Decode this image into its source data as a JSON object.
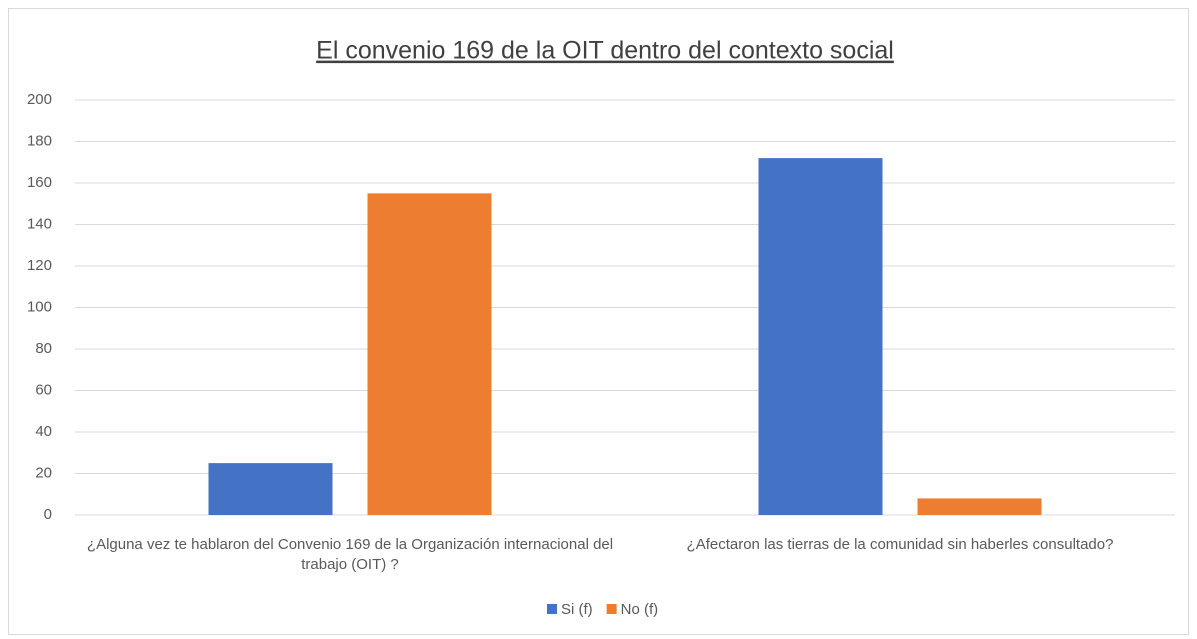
{
  "chart_data": {
    "type": "bar",
    "title": "El convenio 169 de la OIT dentro del contexto social",
    "categories": [
      "¿Alguna vez te hablaron del Convenio 169 de la Organización internacional del trabajo (OIT) ?",
      "¿Afectaron las  tierras  de la comunidad sin haberles consultado?"
    ],
    "series": [
      {
        "name": "Si (f)",
        "color": "#4472c4",
        "values": [
          25,
          172
        ]
      },
      {
        "name": "No (f)",
        "color": "#ed7d31",
        "values": [
          155,
          8
        ]
      }
    ],
    "ylim": [
      0,
      200
    ],
    "yticks": [
      0,
      20,
      40,
      60,
      80,
      100,
      120,
      140,
      160,
      180,
      200
    ],
    "grid": true,
    "legend": "bottom"
  }
}
